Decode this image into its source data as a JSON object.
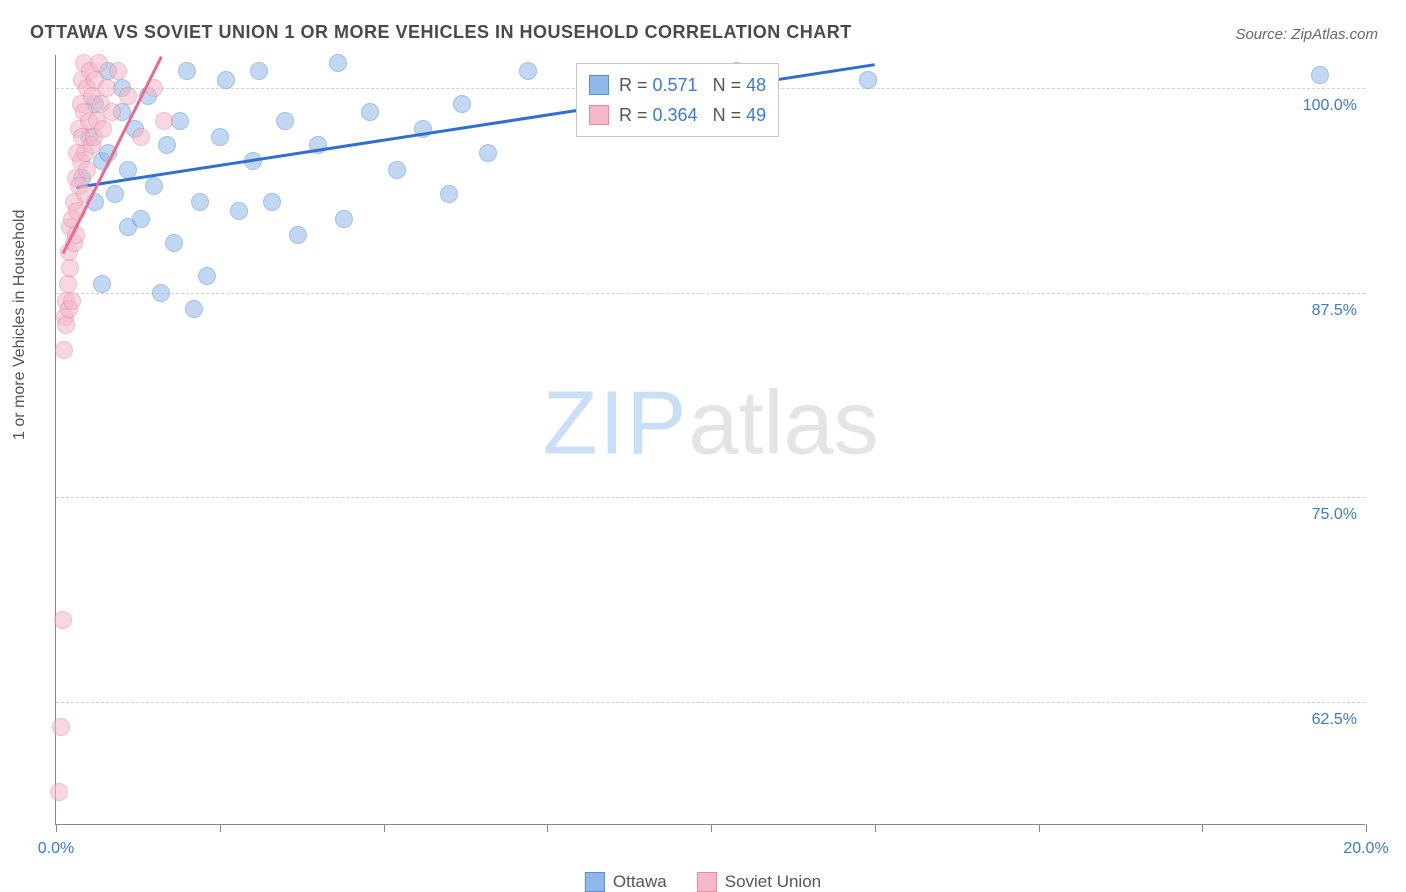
{
  "title": "OTTAWA VS SOVIET UNION 1 OR MORE VEHICLES IN HOUSEHOLD CORRELATION CHART",
  "source": "Source: ZipAtlas.com",
  "ylabel": "1 or more Vehicles in Household",
  "watermark": {
    "left": "ZIP",
    "right": "atlas"
  },
  "chart": {
    "type": "scatter",
    "xlim": [
      0,
      20
    ],
    "ylim": [
      55,
      102
    ],
    "xtick_positions": [
      0,
      2.5,
      5,
      7.5,
      10,
      12.5,
      15,
      17.5,
      20
    ],
    "xtick_labels": {
      "0": "0.0%",
      "20": "20.0%"
    },
    "ytick_positions": [
      62.5,
      75,
      87.5,
      100
    ],
    "ytick_labels": {
      "62.5": "62.5%",
      "75": "75.0%",
      "87.5": "87.5%",
      "100": "100.0%"
    },
    "grid_color": "#d0d0d0",
    "axis_color": "#888888",
    "tick_label_color": "#3a7bd5",
    "label_fontsize": 16,
    "background_color": "#ffffff",
    "marker_radius": 9,
    "marker_opacity": 0.55,
    "series": [
      {
        "name": "Ottawa",
        "fill_color": "#8fb8e8",
        "stroke_color": "#5a8fd6",
        "trend_color": "#2f6fd0",
        "trend_width": 3,
        "r_value": "0.571",
        "n_value": "48",
        "trend": {
          "x1": 0.3,
          "y1": 94.0,
          "x2": 12.5,
          "y2": 101.5
        },
        "points": [
          [
            0.4,
            94.5
          ],
          [
            0.5,
            97.0
          ],
          [
            0.6,
            93.0
          ],
          [
            0.6,
            99.0
          ],
          [
            0.7,
            95.5
          ],
          [
            0.7,
            88.0
          ],
          [
            0.8,
            101.0
          ],
          [
            0.8,
            96.0
          ],
          [
            0.9,
            93.5
          ],
          [
            1.0,
            98.5
          ],
          [
            1.0,
            100.0
          ],
          [
            1.1,
            91.5
          ],
          [
            1.1,
            95.0
          ],
          [
            1.2,
            97.5
          ],
          [
            1.3,
            92.0
          ],
          [
            1.4,
            99.5
          ],
          [
            1.5,
            94.0
          ],
          [
            1.6,
            87.5
          ],
          [
            1.7,
            96.5
          ],
          [
            1.8,
            90.5
          ],
          [
            1.9,
            98.0
          ],
          [
            2.0,
            101.0
          ],
          [
            2.1,
            86.5
          ],
          [
            2.2,
            93.0
          ],
          [
            2.3,
            88.5
          ],
          [
            2.5,
            97.0
          ],
          [
            2.6,
            100.5
          ],
          [
            2.8,
            92.5
          ],
          [
            3.0,
            95.5
          ],
          [
            3.1,
            101.0
          ],
          [
            3.3,
            93.0
          ],
          [
            3.5,
            98.0
          ],
          [
            3.7,
            91.0
          ],
          [
            4.0,
            96.5
          ],
          [
            4.3,
            101.5
          ],
          [
            4.4,
            92.0
          ],
          [
            4.8,
            98.5
          ],
          [
            5.2,
            95.0
          ],
          [
            5.6,
            97.5
          ],
          [
            6.0,
            93.5
          ],
          [
            6.2,
            99.0
          ],
          [
            6.6,
            96.0
          ],
          [
            7.2,
            101.0
          ],
          [
            8.2,
            98.0
          ],
          [
            9.8,
            100.0
          ],
          [
            10.4,
            101.0
          ],
          [
            12.4,
            100.5
          ],
          [
            19.3,
            100.8
          ]
        ]
      },
      {
        "name": "Soviet Union",
        "fill_color": "#f4b8c8",
        "stroke_color": "#e88aa4",
        "trend_color": "#e86a90",
        "trend_width": 3,
        "r_value": "0.364",
        "n_value": "49",
        "trend": {
          "x1": 0.1,
          "y1": 90.0,
          "x2": 1.6,
          "y2": 102.0
        },
        "points": [
          [
            0.05,
            57.0
          ],
          [
            0.08,
            61.0
          ],
          [
            0.1,
            67.5
          ],
          [
            0.12,
            84.0
          ],
          [
            0.13,
            86.0
          ],
          [
            0.15,
            87.0
          ],
          [
            0.16,
            85.5
          ],
          [
            0.18,
            88.0
          ],
          [
            0.2,
            90.0
          ],
          [
            0.2,
            86.5
          ],
          [
            0.22,
            91.5
          ],
          [
            0.22,
            89.0
          ],
          [
            0.25,
            92.0
          ],
          [
            0.25,
            87.0
          ],
          [
            0.28,
            93.0
          ],
          [
            0.28,
            90.5
          ],
          [
            0.3,
            94.5
          ],
          [
            0.3,
            91.0
          ],
          [
            0.32,
            96.0
          ],
          [
            0.32,
            92.5
          ],
          [
            0.35,
            97.5
          ],
          [
            0.35,
            94.0
          ],
          [
            0.38,
            99.0
          ],
          [
            0.38,
            95.5
          ],
          [
            0.4,
            100.5
          ],
          [
            0.4,
            97.0
          ],
          [
            0.42,
            101.5
          ],
          [
            0.42,
            98.5
          ],
          [
            0.45,
            96.0
          ],
          [
            0.45,
            93.5
          ],
          [
            0.48,
            100.0
          ],
          [
            0.48,
            95.0
          ],
          [
            0.5,
            98.0
          ],
          [
            0.52,
            101.0
          ],
          [
            0.55,
            99.5
          ],
          [
            0.55,
            96.5
          ],
          [
            0.58,
            97.0
          ],
          [
            0.6,
            100.5
          ],
          [
            0.62,
            98.0
          ],
          [
            0.65,
            101.5
          ],
          [
            0.68,
            99.0
          ],
          [
            0.72,
            97.5
          ],
          [
            0.78,
            100.0
          ],
          [
            0.85,
            98.5
          ],
          [
            0.95,
            101.0
          ],
          [
            1.1,
            99.5
          ],
          [
            1.3,
            97.0
          ],
          [
            1.5,
            100.0
          ],
          [
            1.65,
            98.0
          ]
        ]
      }
    ]
  },
  "stats_legend": {
    "r_label": "R =",
    "n_label": "N ="
  },
  "bottom_legend": {
    "items": [
      "Ottawa",
      "Soviet Union"
    ]
  }
}
